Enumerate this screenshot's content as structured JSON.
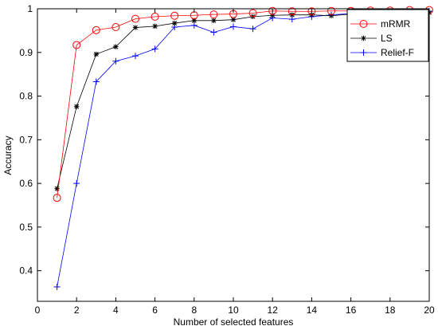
{
  "chart_data": {
    "type": "line",
    "title": "",
    "xlabel": "Number of selected features",
    "ylabel": "Accuracy",
    "xlim": [
      0,
      20
    ],
    "ylim": [
      0.33,
      1.0
    ],
    "xticks": [
      "0",
      "2",
      "4",
      "6",
      "8",
      "10",
      "12",
      "14",
      "16",
      "18",
      "20"
    ],
    "yticks": [
      "0.4",
      "0.5",
      "0.6",
      "0.7",
      "0.8",
      "0.9",
      "1"
    ],
    "grid": false,
    "legend_position": "top-right",
    "x": [
      1,
      2,
      3,
      4,
      5,
      6,
      7,
      8,
      9,
      10,
      11,
      12,
      13,
      14,
      15,
      16,
      17,
      18,
      19,
      20
    ],
    "series": [
      {
        "name": "mRMR",
        "color": "#ff0000",
        "marker": "circle",
        "values": [
          0.567,
          0.917,
          0.951,
          0.958,
          0.977,
          0.982,
          0.984,
          0.985,
          0.987,
          0.988,
          0.99,
          0.995,
          0.994,
          0.994,
          0.995,
          0.995,
          0.996,
          0.996,
          0.997,
          0.997
        ]
      },
      {
        "name": "LS",
        "color": "#000000",
        "marker": "star",
        "values": [
          0.588,
          0.776,
          0.896,
          0.913,
          0.957,
          0.96,
          0.967,
          0.973,
          0.973,
          0.975,
          0.982,
          0.985,
          0.986,
          0.986,
          0.984,
          0.988,
          0.989,
          0.99,
          0.99,
          0.991
        ]
      },
      {
        "name": "Relief-F",
        "color": "#0000ff",
        "marker": "plus",
        "values": [
          0.363,
          0.6,
          0.833,
          0.88,
          0.892,
          0.908,
          0.958,
          0.962,
          0.946,
          0.959,
          0.954,
          0.979,
          0.976,
          0.982,
          0.986,
          0.989,
          0.991,
          0.992,
          0.993,
          0.994
        ]
      }
    ]
  }
}
